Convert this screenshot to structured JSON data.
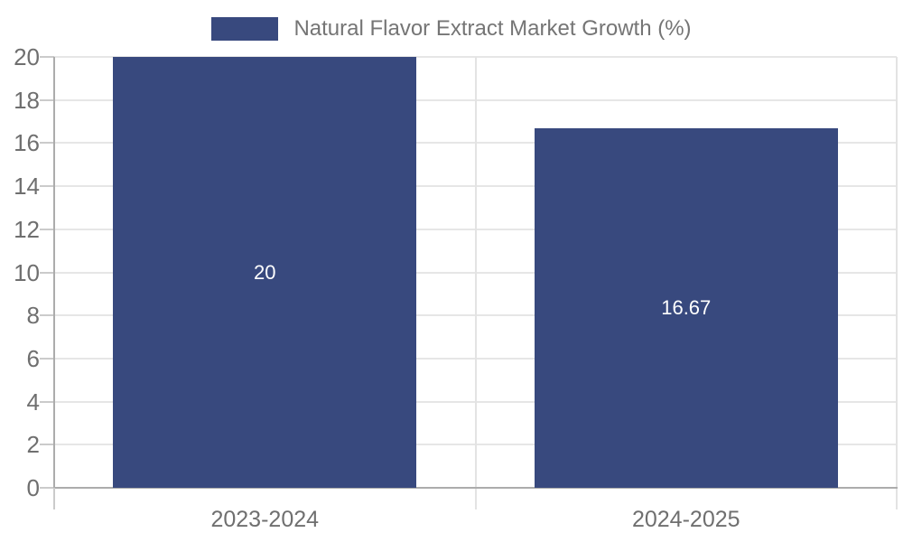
{
  "legend": {
    "label": "Natural Flavor Extract Market Growth (%)"
  },
  "chart_data": {
    "type": "bar",
    "title": "",
    "categories": [
      "2023-2024",
      "2024-2025"
    ],
    "values": [
      20,
      16.67
    ],
    "value_labels": [
      "20",
      "16.67"
    ],
    "series_name": "Natural Flavor Extract Market Growth (%)",
    "ylim": [
      0,
      20
    ],
    "yticks": [
      0,
      2,
      4,
      6,
      8,
      10,
      12,
      14,
      16,
      18,
      20
    ],
    "grid": true,
    "legend_position": "top-center",
    "colors": {
      "bar": "#38497E",
      "bar_label": "#ffffff",
      "grid": "#e6e6e6",
      "axis": "#acacac",
      "tick": "#cbcbcb",
      "boundary_tick": "#e3e3e3",
      "tick_label": "#6f6f6f",
      "legend_text": "#757575"
    }
  }
}
